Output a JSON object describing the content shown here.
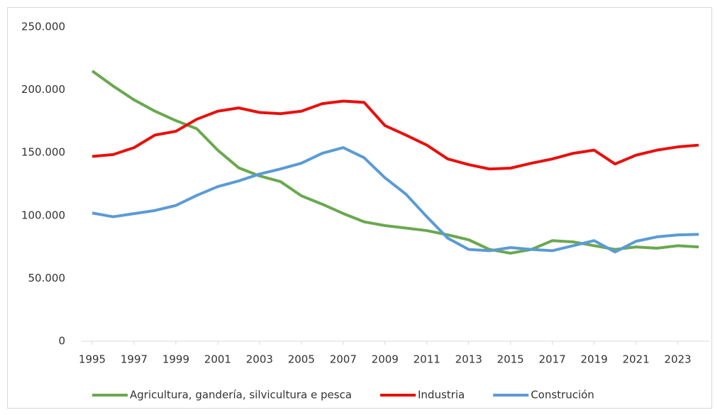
{
  "chart_data": {
    "type": "line",
    "x": [
      1995,
      1996,
      1997,
      1998,
      1999,
      2000,
      2001,
      2002,
      2003,
      2004,
      2005,
      2006,
      2007,
      2008,
      2009,
      2010,
      2011,
      2012,
      2013,
      2014,
      2015,
      2016,
      2017,
      2018,
      2019,
      2020,
      2021,
      2022,
      2023,
      2024
    ],
    "series": [
      {
        "name": "Agricultura, gandería, silvicultura e pesca",
        "color": "#6aa84f",
        "values": [
          215000,
          203000,
          192000,
          183000,
          175500,
          169000,
          152000,
          138000,
          131500,
          127000,
          115700,
          109000,
          101600,
          95000,
          92000,
          90000,
          88000,
          84600,
          80700,
          73000,
          70000,
          73000,
          80000,
          79000,
          76000,
          73000,
          75000,
          74000,
          76000,
          75000
        ]
      },
      {
        "name": "Industria",
        "color": "#e8100c",
        "values": [
          147000,
          148500,
          154000,
          164000,
          167000,
          176600,
          183000,
          185600,
          182000,
          181000,
          183000,
          189000,
          191000,
          190000,
          171500,
          164000,
          156000,
          145000,
          140500,
          137000,
          137700,
          141600,
          145000,
          149500,
          152000,
          141000,
          148000,
          152000,
          154600,
          156000
        ]
      },
      {
        "name": "Construción",
        "color": "#5b9bd5",
        "values": [
          102000,
          99000,
          101500,
          104000,
          108000,
          116000,
          123000,
          127500,
          133000,
          137000,
          141600,
          149500,
          154000,
          146000,
          130000,
          117000,
          99000,
          82000,
          73000,
          72000,
          74500,
          73000,
          72000,
          76000,
          80000,
          71000,
          79500,
          83000,
          84600,
          85000
        ]
      }
    ],
    "xlim": [
      1995,
      2024
    ],
    "xticks": [
      1995,
      1997,
      1999,
      2001,
      2003,
      2005,
      2007,
      2009,
      2011,
      2013,
      2015,
      2017,
      2019,
      2021,
      2023
    ],
    "ylim": [
      0,
      250000
    ],
    "yticks": [
      0,
      {
        "value": 50000,
        "label": "50.000"
      },
      {
        "value": 100000,
        "label": "100.000"
      },
      {
        "value": 150000,
        "label": "150.000"
      },
      {
        "value": 200000,
        "label": "200.000"
      },
      {
        "value": 250000,
        "label": "250.000"
      }
    ],
    "legend": "bottom"
  }
}
